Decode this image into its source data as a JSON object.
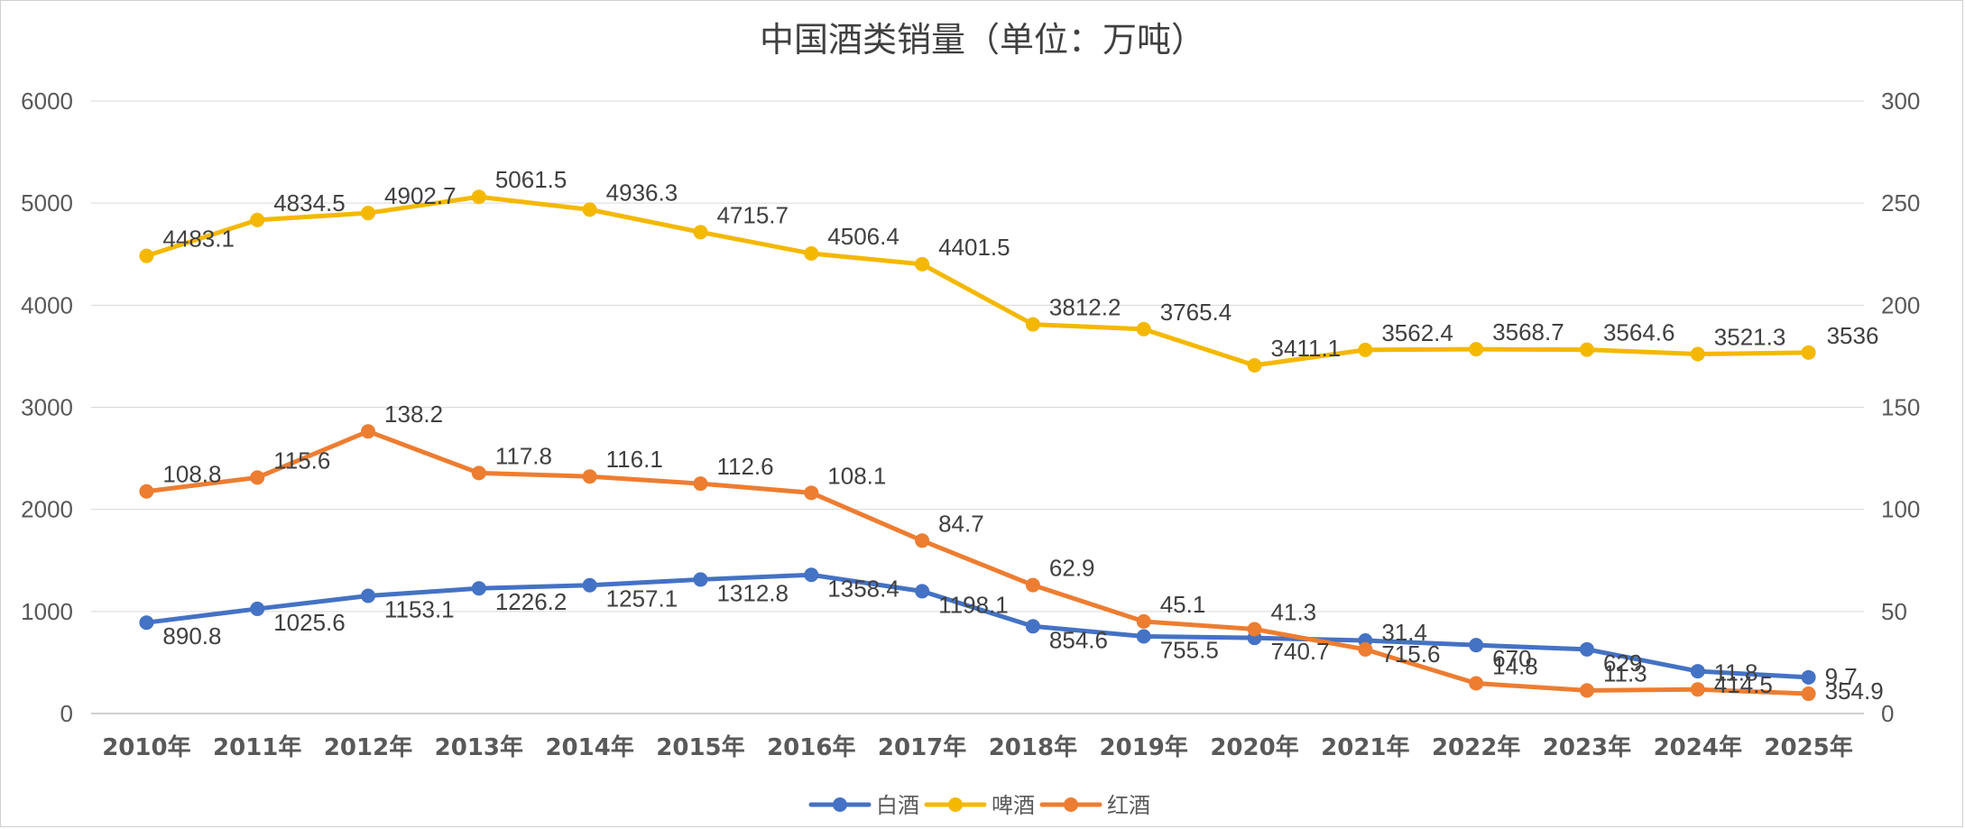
{
  "chart_data": {
    "type": "line",
    "title": "中国酒类销量（单位：万吨）",
    "categories": [
      "2010年",
      "2011年",
      "2012年",
      "2013年",
      "2014年",
      "2015年",
      "2016年",
      "2017年",
      "2018年",
      "2019年",
      "2020年",
      "2021年",
      "2022年",
      "2023年",
      "2024年",
      "2025年"
    ],
    "y_left": {
      "min": 0,
      "max": 6000,
      "step": 1000,
      "ticks": [
        "0",
        "1000",
        "2000",
        "3000",
        "4000",
        "5000",
        "6000"
      ]
    },
    "y_right": {
      "min": 0,
      "max": 300,
      "step": 50,
      "ticks": [
        "0",
        "50",
        "100",
        "150",
        "200",
        "250",
        "300"
      ]
    },
    "legend_position": "bottom",
    "series": [
      {
        "name": "白酒",
        "axis": "left",
        "color": "#4472C4",
        "values": [
          890.8,
          1025.6,
          1153.1,
          1226.2,
          1257.1,
          1312.8,
          1358.4,
          1198.1,
          854.6,
          755.5,
          740.7,
          715.6,
          670,
          629,
          414.5,
          354.9
        ],
        "labels": [
          "890.8",
          "1025.6",
          "1153.1",
          "1226.2",
          "1257.1",
          "1312.8",
          "1358.4",
          "1198.1",
          "854.6",
          "755.5",
          "740.7",
          "715.6",
          "670",
          "629",
          "414.5",
          "354.9"
        ]
      },
      {
        "name": "啤酒",
        "axis": "left",
        "color": "#F4B800",
        "values": [
          4483.1,
          4834.5,
          4902.7,
          5061.5,
          4936.3,
          4715.7,
          4506.4,
          4401.5,
          3812.2,
          3765.4,
          3411.1,
          3562.4,
          3568.7,
          3564.6,
          3521.3,
          3536
        ],
        "labels": [
          "4483.1",
          "4834.5",
          "4902.7",
          "5061.5",
          "4936.3",
          "4715.7",
          "4506.4",
          "4401.5",
          "3812.2",
          "3765.4",
          "3411.1",
          "3562.4",
          "3568.7",
          "3564.6",
          "3521.3",
          "3536"
        ]
      },
      {
        "name": "红酒",
        "axis": "right",
        "color": "#ED7D31",
        "values": [
          108.8,
          115.6,
          138.2,
          117.8,
          116.1,
          112.6,
          108.1,
          84.7,
          62.9,
          45.1,
          41.3,
          31.4,
          14.8,
          11.3,
          11.8,
          9.7
        ],
        "labels": [
          "108.8",
          "115.6",
          "138.2",
          "117.8",
          "116.1",
          "112.6",
          "108.1",
          "84.7",
          "62.9",
          "45.1",
          "41.3",
          "31.4",
          "14.8",
          "11.3",
          "11.8",
          "9.7"
        ]
      }
    ]
  }
}
